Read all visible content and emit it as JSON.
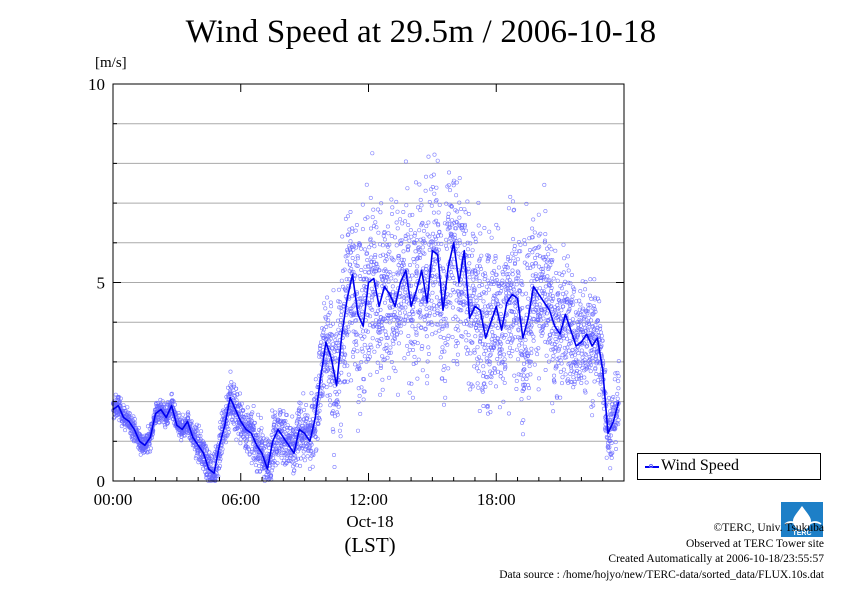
{
  "title": "Wind Speed at 29.5m / 2006-10-18",
  "unit_label": "[m/s]",
  "date_label": "Oct-18",
  "timezone_label": "(LST)",
  "legend_label": "Wind Speed",
  "credits": {
    "copyright": "©TERC, Univ. Tsukuba",
    "observed": "Observed at TERC Tower site",
    "created": "Created Automatically at 2006-10-18/23:55:57",
    "source": "Data source : /home/hojyo/new/TERC-data/sorted_data/FLUX.10s.dat"
  },
  "logo_text": "TERC",
  "colors": {
    "line": "#0000ee",
    "points": "#6666ff",
    "grid": "#aaaaaa"
  },
  "chart_data": {
    "type": "line",
    "title": "Wind Speed at 29.5m / 2006-10-18",
    "ylabel": "[m/s]",
    "xlabel": "Oct-18 (LST)",
    "x_unit": "hour of day (LST)",
    "xlim": [
      0,
      24
    ],
    "ylim": [
      0,
      10
    ],
    "x_ticks": [
      0,
      6,
      12,
      18
    ],
    "x_tick_labels": [
      "00:00",
      "06:00",
      "12:00",
      "18:00"
    ],
    "y_ticks": [
      0,
      5,
      10
    ],
    "y_tick_labels": [
      "0",
      "5",
      "10"
    ],
    "grid": "horizontal every 1 m/s",
    "legend": "bottom-right, outside plot",
    "series": [
      {
        "name": "Wind Speed",
        "style": "line with scattered 10-second samples",
        "x": [
          0.0,
          0.25,
          0.5,
          0.75,
          1.0,
          1.25,
          1.5,
          1.75,
          2.0,
          2.25,
          2.5,
          2.75,
          3.0,
          3.25,
          3.5,
          3.75,
          4.0,
          4.25,
          4.5,
          4.75,
          5.0,
          5.25,
          5.5,
          5.75,
          6.0,
          6.25,
          6.5,
          6.75,
          7.0,
          7.25,
          7.5,
          7.75,
          8.0,
          8.25,
          8.5,
          8.75,
          9.0,
          9.25,
          9.5,
          9.75,
          10.0,
          10.25,
          10.5,
          10.75,
          11.0,
          11.25,
          11.5,
          11.75,
          12.0,
          12.25,
          12.5,
          12.75,
          13.0,
          13.25,
          13.5,
          13.75,
          14.0,
          14.25,
          14.5,
          14.75,
          15.0,
          15.25,
          15.5,
          15.75,
          16.0,
          16.25,
          16.5,
          16.75,
          17.0,
          17.25,
          17.5,
          17.75,
          18.0,
          18.25,
          18.5,
          18.75,
          19.0,
          19.25,
          19.5,
          19.75,
          20.0,
          20.25,
          20.5,
          20.75,
          21.0,
          21.25,
          21.5,
          21.75,
          22.0,
          22.25,
          22.5,
          22.75,
          23.0,
          23.25,
          23.5,
          23.75
        ],
        "values": [
          1.8,
          1.9,
          1.6,
          1.5,
          1.3,
          1.0,
          0.9,
          1.1,
          1.7,
          1.8,
          1.6,
          1.9,
          1.4,
          1.3,
          1.5,
          1.1,
          0.9,
          0.7,
          0.3,
          0.2,
          0.9,
          1.4,
          2.1,
          1.8,
          1.5,
          1.3,
          1.2,
          0.9,
          0.7,
          0.3,
          1.0,
          1.3,
          1.1,
          0.9,
          0.7,
          1.3,
          1.2,
          1.0,
          1.6,
          2.6,
          3.5,
          3.1,
          2.4,
          3.7,
          4.6,
          5.2,
          4.2,
          3.9,
          5.0,
          5.1,
          4.4,
          4.9,
          4.7,
          4.4,
          5.0,
          5.3,
          4.4,
          4.8,
          5.3,
          4.5,
          5.8,
          5.7,
          4.3,
          5.4,
          6.0,
          5.0,
          5.8,
          4.1,
          4.4,
          4.3,
          3.6,
          4.0,
          4.4,
          3.8,
          4.5,
          4.7,
          4.6,
          3.6,
          4.1,
          4.9,
          4.7,
          4.5,
          4.3,
          3.9,
          3.7,
          4.2,
          3.8,
          3.4,
          3.5,
          3.7,
          3.4,
          3.6,
          2.8,
          1.2,
          1.5,
          2.0
        ],
        "spread": [
          0.2,
          0.2,
          0.2,
          0.2,
          0.2,
          0.2,
          0.2,
          0.2,
          0.2,
          0.2,
          0.2,
          0.2,
          0.2,
          0.2,
          0.2,
          0.2,
          0.3,
          0.3,
          0.3,
          0.3,
          0.5,
          0.5,
          0.5,
          0.5,
          0.4,
          0.4,
          0.4,
          0.4,
          0.5,
          0.5,
          0.5,
          0.5,
          0.5,
          0.5,
          0.5,
          0.5,
          0.5,
          0.5,
          0.6,
          0.8,
          1.0,
          1.2,
          1.4,
          1.5,
          1.6,
          1.6,
          1.6,
          1.6,
          1.6,
          1.6,
          1.6,
          1.6,
          1.6,
          1.6,
          1.6,
          1.6,
          1.6,
          1.6,
          1.6,
          1.6,
          1.6,
          1.6,
          1.6,
          1.6,
          1.6,
          1.6,
          1.6,
          1.6,
          1.6,
          1.6,
          1.5,
          1.5,
          1.5,
          1.5,
          1.5,
          1.5,
          1.5,
          1.5,
          1.5,
          1.4,
          1.4,
          1.4,
          1.3,
          1.3,
          1.2,
          1.2,
          1.1,
          1.1,
          1.0,
          1.0,
          1.0,
          1.0,
          0.8,
          0.6,
          0.6,
          0.6
        ]
      }
    ]
  }
}
